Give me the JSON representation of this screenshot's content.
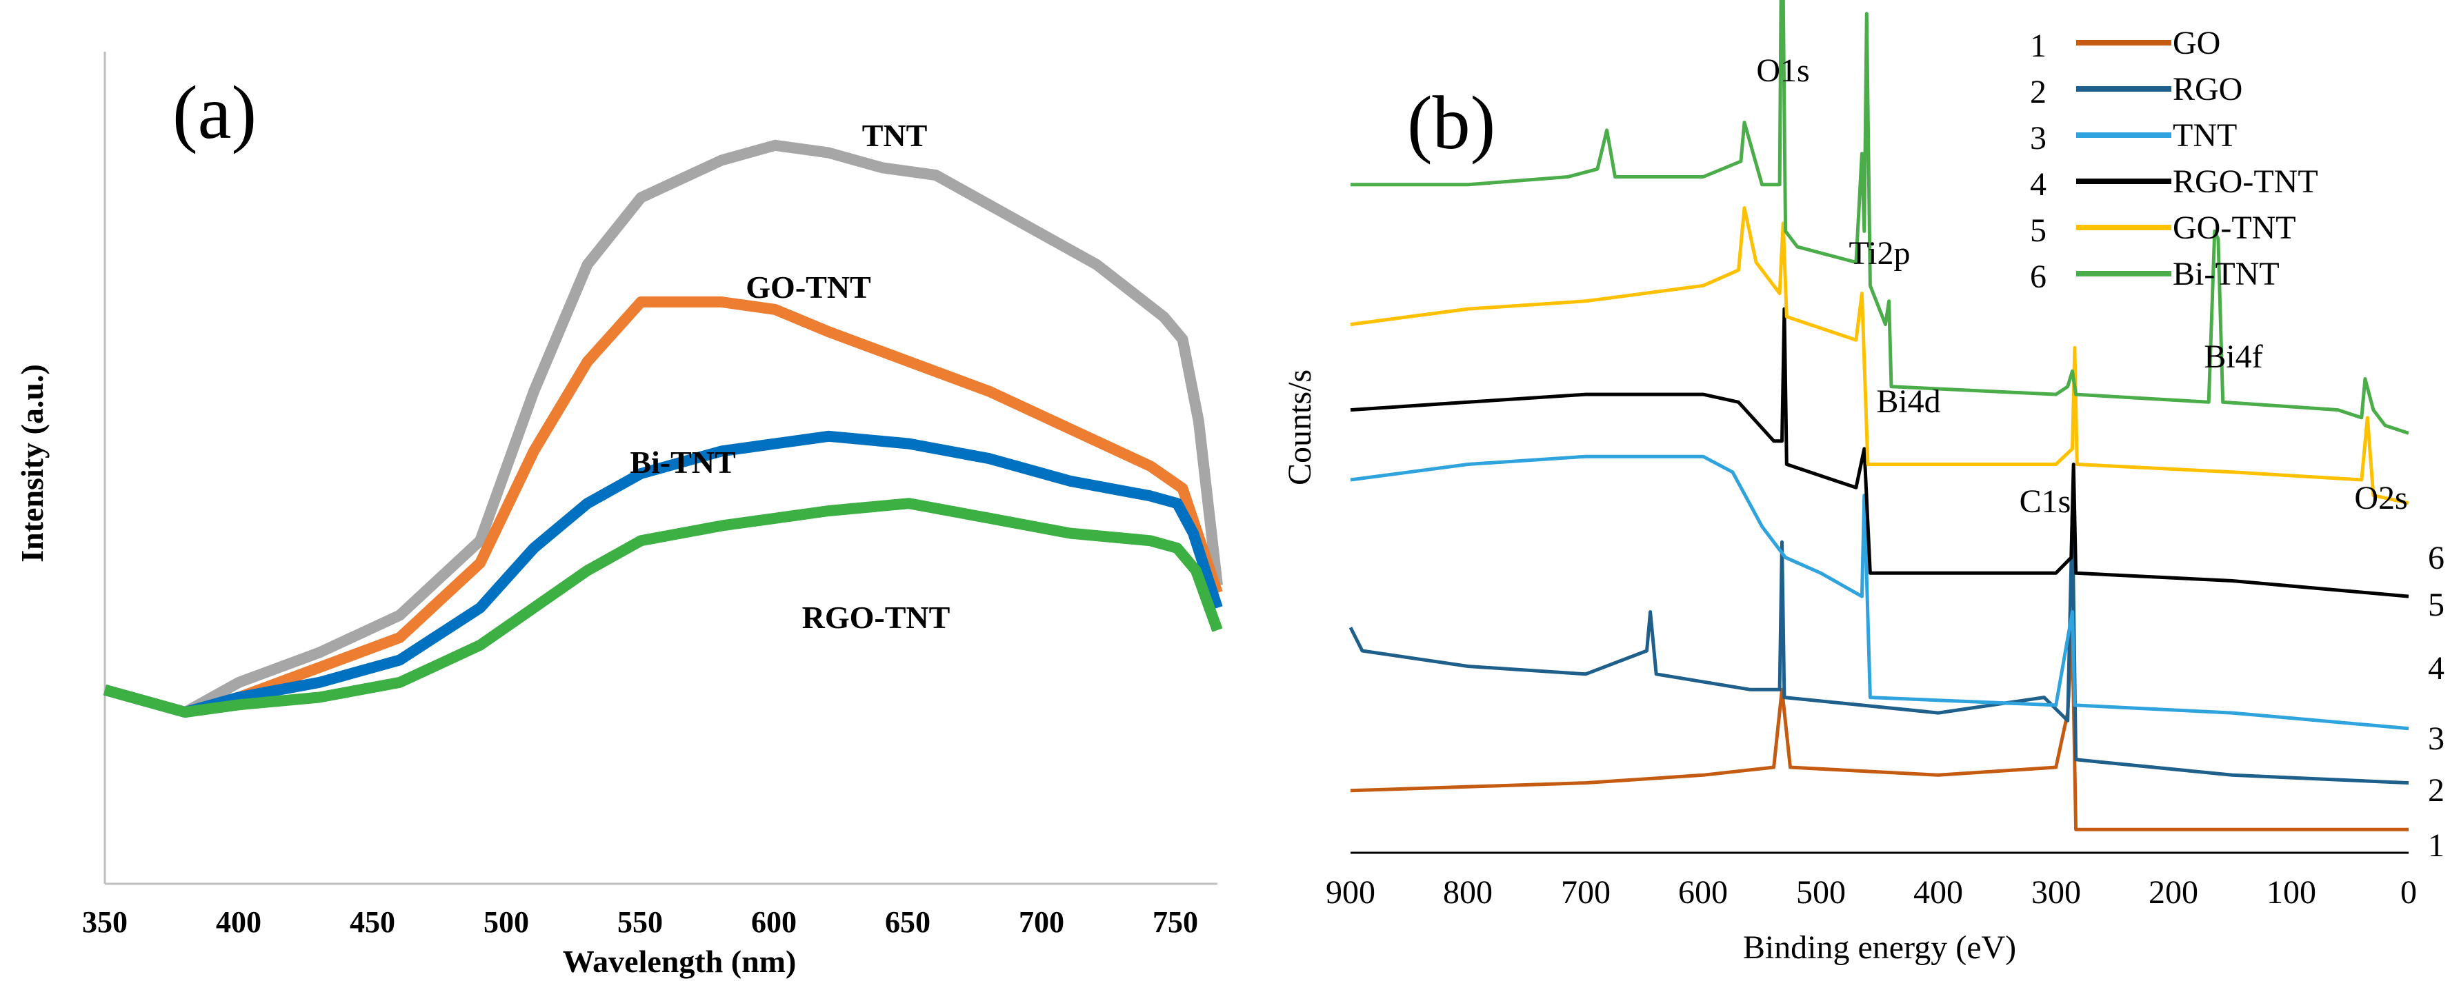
{
  "chart_data": [
    {
      "type": "line",
      "panel_label": "(a)",
      "xlabel": "Wavelength (nm)",
      "ylabel": "Intensity (a.u.)",
      "xlim": [
        350,
        765
      ],
      "x_ticks": [
        "350",
        "400",
        "450",
        "500",
        "550",
        "600",
        "650",
        "700",
        "750"
      ],
      "series": [
        {
          "name": "TNT",
          "color": "#a6a6a6",
          "label": "TNT",
          "points": [
            [
              350,
              0.26
            ],
            [
              380,
              0.23
            ],
            [
              400,
              0.27
            ],
            [
              430,
              0.31
            ],
            [
              460,
              0.36
            ],
            [
              490,
              0.46
            ],
            [
              510,
              0.66
            ],
            [
              530,
              0.83
            ],
            [
              550,
              0.92
            ],
            [
              580,
              0.97
            ],
            [
              600,
              0.99
            ],
            [
              620,
              0.98
            ],
            [
              640,
              0.96
            ],
            [
              660,
              0.95
            ],
            [
              690,
              0.89
            ],
            [
              720,
              0.83
            ],
            [
              745,
              0.76
            ],
            [
              752,
              0.73
            ],
            [
              758,
              0.62
            ],
            [
              765,
              0.4
            ]
          ]
        },
        {
          "name": "GO-TNT",
          "color": "#ed7d31",
          "label": "GO-TNT",
          "points": [
            [
              350,
              0.26
            ],
            [
              380,
              0.23
            ],
            [
              400,
              0.25
            ],
            [
              430,
              0.29
            ],
            [
              460,
              0.33
            ],
            [
              490,
              0.43
            ],
            [
              510,
              0.58
            ],
            [
              530,
              0.7
            ],
            [
              550,
              0.78
            ],
            [
              580,
              0.78
            ],
            [
              600,
              0.77
            ],
            [
              620,
              0.74
            ],
            [
              650,
              0.7
            ],
            [
              680,
              0.66
            ],
            [
              710,
              0.61
            ],
            [
              740,
              0.56
            ],
            [
              752,
              0.53
            ],
            [
              765,
              0.39
            ]
          ]
        },
        {
          "name": "Bi-TNT",
          "color": "#0070c0",
          "label": "Bi-TNT",
          "points": [
            [
              350,
              0.26
            ],
            [
              380,
              0.23
            ],
            [
              400,
              0.25
            ],
            [
              430,
              0.27
            ],
            [
              460,
              0.3
            ],
            [
              490,
              0.37
            ],
            [
              510,
              0.45
            ],
            [
              530,
              0.51
            ],
            [
              550,
              0.55
            ],
            [
              580,
              0.58
            ],
            [
              600,
              0.59
            ],
            [
              620,
              0.6
            ],
            [
              650,
              0.59
            ],
            [
              680,
              0.57
            ],
            [
              710,
              0.54
            ],
            [
              740,
              0.52
            ],
            [
              750,
              0.51
            ],
            [
              756,
              0.47
            ],
            [
              765,
              0.37
            ]
          ]
        },
        {
          "name": "RGO-TNT",
          "color": "#3cb043",
          "label": "RGO-TNT",
          "points": [
            [
              350,
              0.26
            ],
            [
              380,
              0.23
            ],
            [
              400,
              0.24
            ],
            [
              430,
              0.25
            ],
            [
              460,
              0.27
            ],
            [
              490,
              0.32
            ],
            [
              510,
              0.37
            ],
            [
              530,
              0.42
            ],
            [
              550,
              0.46
            ],
            [
              580,
              0.48
            ],
            [
              600,
              0.49
            ],
            [
              620,
              0.5
            ],
            [
              650,
              0.51
            ],
            [
              680,
              0.49
            ],
            [
              710,
              0.47
            ],
            [
              740,
              0.46
            ],
            [
              750,
              0.45
            ],
            [
              757,
              0.42
            ],
            [
              765,
              0.34
            ]
          ]
        }
      ]
    },
    {
      "type": "line",
      "panel_label": "(b)",
      "xlabel": "Binding energy (eV)",
      "ylabel": "Counts/s",
      "xlim": [
        900,
        0
      ],
      "x_ticks": [
        "900",
        "800",
        "700",
        "600",
        "500",
        "400",
        "300",
        "200",
        "100",
        "0"
      ],
      "peak_labels": [
        "O1s",
        "Ti2p",
        "Bi4d",
        "C1s",
        "Bi4f",
        "O2s"
      ],
      "legend": [
        {
          "num": "1",
          "name": "GO",
          "color": "#c55a11"
        },
        {
          "num": "2",
          "name": "RGO",
          "color": "#1f5f8b"
        },
        {
          "num": "3",
          "name": "TNT",
          "color": "#2ea3dd"
        },
        {
          "num": "4",
          "name": "RGO-TNT",
          "color": "#000000"
        },
        {
          "num": "5",
          "name": "GO-TNT",
          "color": "#ffc000"
        },
        {
          "num": "6",
          "name": "Bi-TNT",
          "color": "#4aad4a"
        }
      ],
      "series": [
        {
          "num": "1",
          "name": "GO",
          "color": "#c55a11",
          "points": [
            [
              900,
              0.08
            ],
            [
              700,
              0.09
            ],
            [
              600,
              0.1
            ],
            [
              540,
              0.11
            ],
            [
              533,
              0.21
            ],
            [
              526,
              0.11
            ],
            [
              400,
              0.1
            ],
            [
              300,
              0.11
            ],
            [
              290,
              0.18
            ],
            [
              286,
              0.28
            ],
            [
              283,
              0.03
            ],
            [
              200,
              0.03
            ],
            [
              0,
              0.03
            ]
          ]
        },
        {
          "num": "2",
          "name": "RGO",
          "color": "#1f5f8b",
          "points": [
            [
              900,
              0.29
            ],
            [
              890,
              0.26
            ],
            [
              800,
              0.24
            ],
            [
              700,
              0.23
            ],
            [
              648,
              0.26
            ],
            [
              645,
              0.31
            ],
            [
              640,
              0.23
            ],
            [
              560,
              0.21
            ],
            [
              535,
              0.21
            ],
            [
              533,
              0.4
            ],
            [
              531,
              0.2
            ],
            [
              400,
              0.18
            ],
            [
              310,
              0.2
            ],
            [
              290,
              0.17
            ],
            [
              286,
              0.44
            ],
            [
              283,
              0.12
            ],
            [
              150,
              0.1
            ],
            [
              0,
              0.09
            ]
          ]
        },
        {
          "num": "3",
          "name": "TNT",
          "color": "#2ea3dd",
          "points": [
            [
              900,
              0.48
            ],
            [
              800,
              0.5
            ],
            [
              700,
              0.51
            ],
            [
              600,
              0.51
            ],
            [
              575,
              0.49
            ],
            [
              550,
              0.42
            ],
            [
              530,
              0.38
            ],
            [
              500,
              0.36
            ],
            [
              465,
              0.33
            ],
            [
              463,
              0.46
            ],
            [
              458,
              0.2
            ],
            [
              300,
              0.19
            ],
            [
              286,
              0.31
            ],
            [
              284,
              0.19
            ],
            [
              150,
              0.18
            ],
            [
              0,
              0.16
            ]
          ]
        },
        {
          "num": "4",
          "name": "RGO-TNT",
          "color": "#000000",
          "points": [
            [
              900,
              0.57
            ],
            [
              800,
              0.58
            ],
            [
              700,
              0.59
            ],
            [
              600,
              0.59
            ],
            [
              570,
              0.58
            ],
            [
              540,
              0.53
            ],
            [
              533,
              0.53
            ],
            [
              531,
              0.7
            ],
            [
              529,
              0.5
            ],
            [
              470,
              0.47
            ],
            [
              463,
              0.52
            ],
            [
              458,
              0.36
            ],
            [
              300,
              0.36
            ],
            [
              287,
              0.38
            ],
            [
              285,
              0.5
            ],
            [
              283,
              0.36
            ],
            [
              150,
              0.35
            ],
            [
              0,
              0.33
            ]
          ]
        },
        {
          "num": "5",
          "name": "GO-TNT",
          "color": "#ffc000",
          "points": [
            [
              900,
              0.68
            ],
            [
              800,
              0.7
            ],
            [
              700,
              0.71
            ],
            [
              600,
              0.73
            ],
            [
              570,
              0.75
            ],
            [
              565,
              0.83
            ],
            [
              555,
              0.76
            ],
            [
              535,
              0.72
            ],
            [
              532,
              0.81
            ],
            [
              529,
              0.69
            ],
            [
              470,
              0.66
            ],
            [
              465,
              0.72
            ],
            [
              460,
              0.5
            ],
            [
              300,
              0.5
            ],
            [
              286,
              0.52
            ],
            [
              284,
              0.65
            ],
            [
              282,
              0.5
            ],
            [
              150,
              0.49
            ],
            [
              40,
              0.48
            ],
            [
              35,
              0.56
            ],
            [
              30,
              0.46
            ],
            [
              0,
              0.45
            ]
          ]
        },
        {
          "num": "6",
          "name": "Bi-TNT",
          "color": "#4aad4a",
          "points": [
            [
              900,
              0.86
            ],
            [
              800,
              0.86
            ],
            [
              715,
              0.87
            ],
            [
              690,
              0.88
            ],
            [
              682,
              0.93
            ],
            [
              675,
              0.87
            ],
            [
              600,
              0.87
            ],
            [
              568,
              0.89
            ],
            [
              565,
              0.94
            ],
            [
              550,
              0.86
            ],
            [
              535,
              0.86
            ],
            [
              533,
              1.26
            ],
            [
              530,
              0.8
            ],
            [
              520,
              0.78
            ],
            [
              470,
              0.76
            ],
            [
              465,
              0.9
            ],
            [
              463,
              0.8
            ],
            [
              461,
              1.08
            ],
            [
              458,
              0.73
            ],
            [
              445,
              0.68
            ],
            [
              442,
              0.71
            ],
            [
              440,
              0.6
            ],
            [
              300,
              0.59
            ],
            [
              290,
              0.6
            ],
            [
              286,
              0.62
            ],
            [
              283,
              0.59
            ],
            [
              170,
              0.58
            ],
            [
              165,
              0.8
            ],
            [
              162,
              0.79
            ],
            [
              158,
              0.58
            ],
            [
              60,
              0.57
            ],
            [
              40,
              0.56
            ],
            [
              37,
              0.61
            ],
            [
              30,
              0.57
            ],
            [
              20,
              0.55
            ],
            [
              0,
              0.54
            ]
          ]
        }
      ]
    }
  ]
}
